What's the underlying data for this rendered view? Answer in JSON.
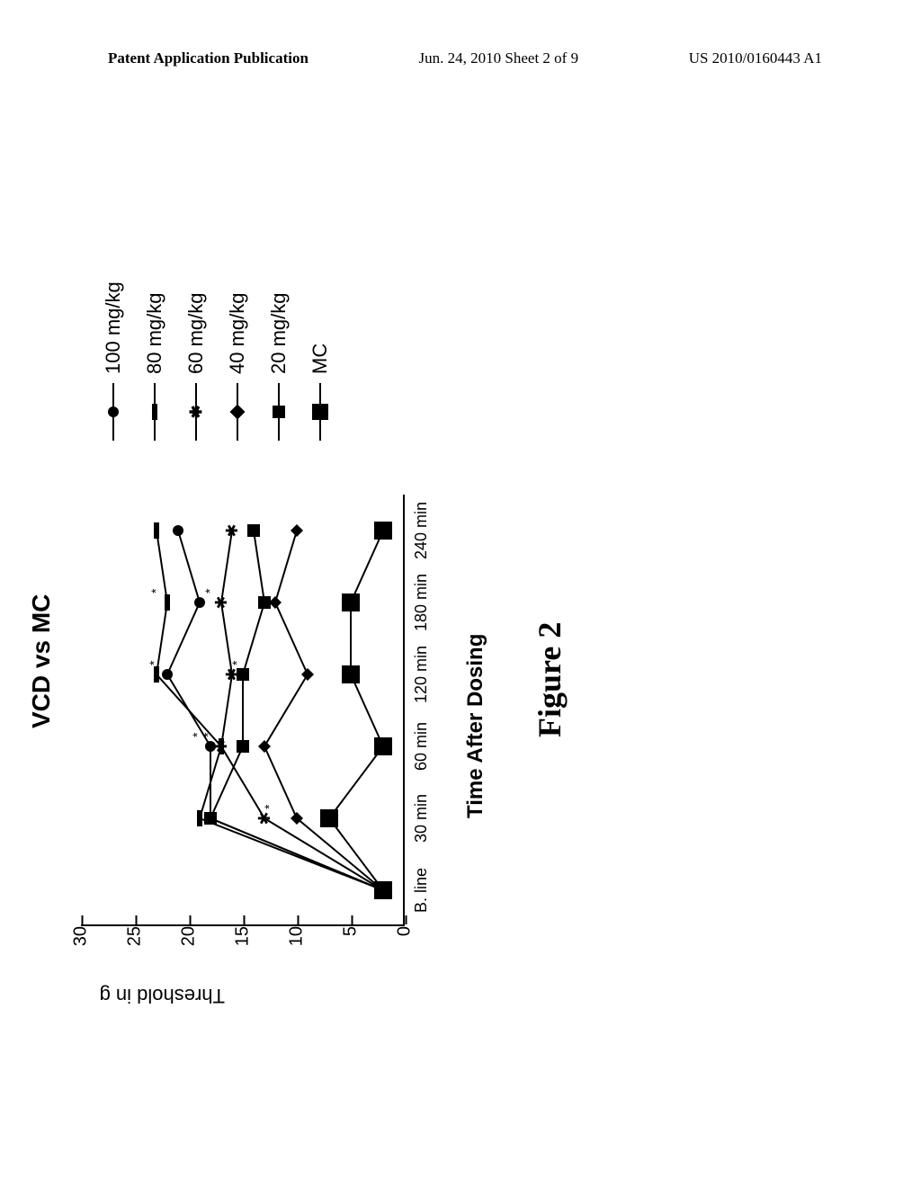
{
  "header": {
    "left": "Patent Application Publication",
    "center": "Jun. 24, 2010  Sheet 2 of 9",
    "right": "US 2010/0160443 A1"
  },
  "chart": {
    "type": "line",
    "title": "VCD vs MC",
    "title_fontsize": 28,
    "ylabel": "Threshold in g",
    "xlabel": "Time After Dosing",
    "figure_caption": "Figure 2",
    "ylim": [
      0,
      30
    ],
    "ytick_step": 5,
    "yticks": [
      0,
      5,
      10,
      15,
      20,
      25,
      30
    ],
    "x_categories": [
      "B. line",
      "30 min",
      "60 min",
      "120 min",
      "180 min",
      "240 min"
    ],
    "background_color": "#ffffff",
    "axis_color": "#000000",
    "series": [
      {
        "name": "100 mg/kg",
        "marker": "circle",
        "values": [
          2,
          18,
          18,
          22,
          19,
          21
        ]
      },
      {
        "name": "80 mg/kg",
        "marker": "bar",
        "values": [
          2,
          19,
          17,
          23,
          22,
          23
        ]
      },
      {
        "name": "60 mg/kg",
        "marker": "star",
        "values": [
          2,
          13,
          17,
          16,
          17,
          16
        ]
      },
      {
        "name": "40 mg/kg",
        "marker": "diamond",
        "values": [
          2,
          10,
          13,
          9,
          12,
          10
        ]
      },
      {
        "name": "20 mg/kg",
        "marker": "square",
        "values": [
          2,
          18,
          15,
          15,
          13,
          14
        ]
      },
      {
        "name": "MC",
        "marker": "bigsquare",
        "values": [
          2,
          7,
          2,
          5,
          5,
          2
        ]
      }
    ],
    "significance_marks": [
      {
        "series": 0,
        "xi": 2,
        "dy": -10
      },
      {
        "series": 0,
        "xi": 3,
        "dy": -10
      },
      {
        "series": 2,
        "xi": 1,
        "dy": 10
      },
      {
        "series": 2,
        "xi": 2,
        "dy": -10
      },
      {
        "series": 2,
        "xi": 3,
        "dy": 10
      },
      {
        "series": 2,
        "xi": 4,
        "dy": -8
      },
      {
        "series": 1,
        "xi": 4,
        "dy": -8
      }
    ],
    "line_color": "#000000",
    "line_width": 2,
    "fonts": {
      "axis_label_fontsize": 22,
      "tick_fontsize": 20,
      "legend_fontsize": 22
    }
  }
}
